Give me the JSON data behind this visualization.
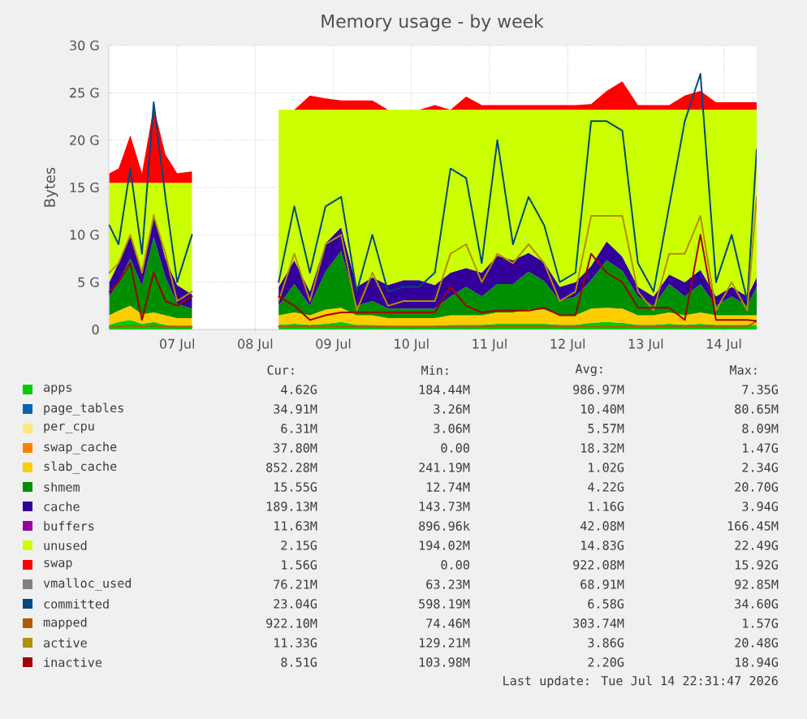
{
  "chart_data": {
    "type": "area",
    "title": "Memory usage - by week",
    "ylabel": "Bytes",
    "stacked": true,
    "grid": true,
    "legend": "bottom",
    "x": [
      "2026-07-06T03:10",
      "2026-07-06T06:00",
      "2026-07-06T09:36",
      "2026-07-06T13:12",
      "2026-07-06T16:48",
      "2026-07-06T20:24",
      "2026-07-07T00:00",
      "2026-07-07T04:34",
      "2026-07-07T16:48",
      "2026-07-08T07:12",
      "2026-07-08T12:00",
      "2026-07-08T16:48",
      "2026-07-08T21:36",
      "2026-07-09T02:24",
      "2026-07-09T07:12",
      "2026-07-09T12:00",
      "2026-07-09T16:48",
      "2026-07-09T21:36",
      "2026-07-10T02:24",
      "2026-07-10T07:12",
      "2026-07-10T12:00",
      "2026-07-10T16:48",
      "2026-07-10T21:36",
      "2026-07-11T02:24",
      "2026-07-11T07:12",
      "2026-07-11T12:00",
      "2026-07-11T16:48",
      "2026-07-11T21:36",
      "2026-07-12T02:24",
      "2026-07-12T07:12",
      "2026-07-12T12:00",
      "2026-07-12T16:48",
      "2026-07-12T21:36",
      "2026-07-13T02:24",
      "2026-07-13T07:12",
      "2026-07-13T12:00",
      "2026-07-13T16:48",
      "2026-07-13T21:36",
      "2026-07-14T02:24",
      "2026-07-14T07:12",
      "2026-07-14T10:05"
    ],
    "xlim": [
      "2026-07-06T03:00",
      "2026-07-14T10:05"
    ],
    "xticks": [
      {
        "value": "2026-07-07",
        "label": "07 Jul"
      },
      {
        "value": "2026-07-08",
        "label": "08 Jul"
      },
      {
        "value": "2026-07-09",
        "label": "09 Jul"
      },
      {
        "value": "2026-07-10",
        "label": "10 Jul"
      },
      {
        "value": "2026-07-11",
        "label": "11 Jul"
      },
      {
        "value": "2026-07-12",
        "label": "12 Jul"
      },
      {
        "value": "2026-07-13",
        "label": "13 Jul"
      },
      {
        "value": "2026-07-14",
        "label": "14 Jul"
      }
    ],
    "ylim": [
      0,
      30
    ],
    "yticks": [
      0,
      {
        "value": 5,
        "label": "5 G"
      },
      {
        "value": 10,
        "label": "10 G"
      },
      {
        "value": 15,
        "label": "15 G"
      },
      {
        "value": 20,
        "label": "20 G"
      },
      {
        "value": 25,
        "label": "25 G"
      },
      {
        "value": 30,
        "label": "30 G"
      }
    ],
    "series": [
      {
        "name": "apps",
        "color": "#00cc00",
        "values": [
          0.5,
          0.8,
          1.0,
          0.6,
          0.8,
          0.5,
          0.4,
          0.4,
          null,
          0.5,
          0.6,
          0.5,
          0.6,
          0.8,
          0.5,
          0.5,
          0.4,
          0.4,
          0.4,
          0.4,
          0.5,
          0.5,
          0.5,
          0.6,
          0.6,
          0.6,
          0.6,
          0.5,
          0.5,
          0.7,
          0.8,
          0.7,
          0.5,
          0.5,
          0.6,
          0.5,
          0.6,
          0.5,
          0.5,
          0.5,
          0.5
        ]
      },
      {
        "name": "page_tables",
        "color": "#0066b3",
        "values": [
          null,
          null,
          null,
          null,
          null,
          null,
          null,
          null,
          null,
          null,
          null,
          null,
          null,
          null,
          null,
          null,
          null,
          null,
          null,
          null,
          null,
          null,
          null,
          null,
          null,
          null,
          null,
          null,
          null,
          null,
          null,
          null,
          null,
          null,
          null,
          null,
          null,
          null,
          null,
          null,
          null
        ]
      },
      {
        "name": "per_cpu",
        "color": "#ffe680",
        "values": [
          null,
          null,
          null,
          null,
          null,
          null,
          null,
          null,
          null,
          null,
          null,
          null,
          null,
          null,
          null,
          null,
          null,
          null,
          null,
          null,
          null,
          null,
          null,
          null,
          null,
          null,
          null,
          null,
          null,
          null,
          null,
          null,
          null,
          null,
          null,
          null,
          null,
          null,
          null,
          null,
          null
        ]
      },
      {
        "name": "swap_cache",
        "color": "#ff8000",
        "values": [
          null,
          null,
          null,
          null,
          null,
          null,
          null,
          null,
          null,
          null,
          null,
          null,
          null,
          null,
          null,
          null,
          null,
          null,
          null,
          null,
          null,
          null,
          null,
          null,
          null,
          null,
          null,
          null,
          null,
          null,
          null,
          null,
          null,
          null,
          null,
          null,
          null,
          null,
          null,
          null,
          null
        ]
      },
      {
        "name": "slab_cache",
        "color": "#ffcc00",
        "values": [
          1.0,
          1.2,
          1.5,
          1.0,
          1.0,
          1.0,
          0.8,
          0.8,
          null,
          1.0,
          1.2,
          1.0,
          1.5,
          1.5,
          1.0,
          1.0,
          0.8,
          0.8,
          0.8,
          0.8,
          1.0,
          1.0,
          1.0,
          1.2,
          1.2,
          1.5,
          1.5,
          1.0,
          1.0,
          1.5,
          1.5,
          1.5,
          1.0,
          1.0,
          1.2,
          1.0,
          1.2,
          1.0,
          1.0,
          1.0,
          1.0
        ]
      },
      {
        "name": "shmem",
        "color": "#008f00",
        "values": [
          2.0,
          3.0,
          5.0,
          3.0,
          8.0,
          4.0,
          1.5,
          1.0,
          null,
          1.0,
          3.0,
          1.0,
          4.0,
          6.0,
          1.0,
          1.5,
          1.0,
          1.0,
          1.0,
          1.0,
          2.0,
          3.0,
          2.0,
          3.0,
          3.0,
          4.0,
          3.0,
          1.5,
          2.0,
          3.0,
          5.0,
          4.0,
          2.0,
          1.0,
          3.0,
          2.0,
          3.0,
          1.0,
          2.0,
          1.0,
          3.0
        ]
      },
      {
        "name": "cache",
        "color": "#330099",
        "values": [
          1.5,
          2.0,
          2.5,
          1.5,
          2.5,
          2.0,
          2.0,
          1.5,
          null,
          2.0,
          2.5,
          1.5,
          3.0,
          2.5,
          2.0,
          2.5,
          2.5,
          3.0,
          3.0,
          2.5,
          2.5,
          2.0,
          2.5,
          3.0,
          2.5,
          2.0,
          2.0,
          1.5,
          1.5,
          1.5,
          2.0,
          1.5,
          1.0,
          1.0,
          1.0,
          1.5,
          1.5,
          1.0,
          1.0,
          1.0,
          1.0
        ]
      },
      {
        "name": "buffers",
        "color": "#990099",
        "values": [
          null,
          null,
          null,
          null,
          null,
          null,
          null,
          null,
          null,
          null,
          null,
          null,
          null,
          null,
          null,
          null,
          null,
          null,
          null,
          null,
          null,
          null,
          null,
          null,
          null,
          null,
          null,
          null,
          null,
          null,
          null,
          null,
          null,
          null,
          null,
          null,
          null,
          null,
          null,
          null,
          null
        ]
      },
      {
        "name": "unused",
        "color": "#ccff00",
        "values": [
          10.5,
          8.5,
          5.5,
          9.4,
          3.2,
          8.0,
          10.8,
          11.8,
          null,
          18.7,
          15.9,
          19.2,
          14.1,
          12.4,
          18.7,
          17.7,
          18.5,
          18.0,
          18.0,
          18.5,
          17.2,
          16.7,
          17.2,
          15.4,
          15.9,
          15.1,
          16.1,
          18.7,
          18.2,
          16.5,
          13.9,
          15.5,
          18.7,
          19.7,
          17.4,
          18.2,
          16.9,
          19.7,
          18.7,
          19.7,
          17.7
        ]
      },
      {
        "name": "swap",
        "color": "#ff0000",
        "values": [
          1.0,
          1.5,
          5.0,
          1.0,
          8.0,
          3.0,
          1.0,
          1.2,
          null,
          0,
          0,
          1.5,
          1.2,
          1.0,
          1.0,
          1.0,
          0,
          0,
          0,
          0.5,
          0,
          1.4,
          0.5,
          0.5,
          0.5,
          0.5,
          0.5,
          0.5,
          0.5,
          0.6,
          2.0,
          3.0,
          0.5,
          0.5,
          0.5,
          1.5,
          2.0,
          0.8,
          0.8,
          0.8,
          0.8
        ]
      },
      {
        "name": "vmalloc_used",
        "type": "line",
        "color": "#808080",
        "values": [
          null,
          null,
          null,
          null,
          null,
          null,
          null,
          null,
          null,
          null,
          null,
          null,
          null,
          null,
          null,
          null,
          null,
          null,
          null,
          null,
          null,
          null,
          null,
          null,
          null,
          null,
          null,
          null,
          null,
          null,
          null,
          null,
          null,
          null,
          null,
          null,
          null,
          null,
          null,
          null,
          null
        ]
      },
      {
        "name": "committed",
        "type": "line",
        "color": "#00487d",
        "values": [
          11,
          9,
          17,
          8,
          24,
          14,
          5,
          10,
          null,
          5,
          13,
          6,
          13,
          14,
          4,
          10,
          4,
          4.5,
          4.5,
          6,
          17,
          16,
          7,
          20,
          9,
          14,
          11,
          5,
          6,
          22,
          22,
          21,
          7,
          4,
          13,
          22,
          27,
          5,
          10,
          3,
          19
        ]
      },
      {
        "name": "mapped",
        "type": "line",
        "color": "#b35a00",
        "values": [
          0.3,
          0.3,
          0.4,
          0.3,
          0.4,
          0.3,
          0.3,
          0.3,
          null,
          0.3,
          0.3,
          0.3,
          0.3,
          0.3,
          0.3,
          0.3,
          0.3,
          0.3,
          0.3,
          0.3,
          0.3,
          0.3,
          0.3,
          0.3,
          0.3,
          0.3,
          0.3,
          0.3,
          0.3,
          0.3,
          0.3,
          0.3,
          0.3,
          0.3,
          0.3,
          0.3,
          0.3,
          0.3,
          0.3,
          0.3,
          0.9
        ]
      },
      {
        "name": "active",
        "type": "line",
        "color": "#b38f00",
        "values": [
          6,
          7,
          10,
          6,
          12,
          8,
          3,
          4,
          null,
          3,
          8,
          3,
          9,
          10,
          2,
          6,
          2.5,
          3,
          3,
          3,
          8,
          9,
          5,
          8,
          7,
          9,
          7,
          3,
          4,
          12,
          12,
          12,
          4,
          2,
          8,
          8,
          12,
          2,
          5,
          2,
          14
        ]
      },
      {
        "name": "inactive",
        "type": "line",
        "color": "#a00000",
        "values": [
          4,
          5,
          7,
          1,
          6,
          3,
          2.5,
          3.5,
          null,
          3.5,
          2.5,
          1,
          1.5,
          1.8,
          1.8,
          1.8,
          1.8,
          1.8,
          1.8,
          1.8,
          4.5,
          2.5,
          1.8,
          2.0,
          2.0,
          2.0,
          2.3,
          1.5,
          1.5,
          8,
          6,
          5,
          2.3,
          2.3,
          2.3,
          1,
          10,
          1,
          1,
          1,
          0.9
        ]
      }
    ],
    "annotations": [
      "Cur:",
      "Min:",
      "Avg:",
      "Max:",
      "4.62G",
      "184.44M",
      "986.97M",
      "7.35G",
      "34.91M",
      "3.26M",
      "10.40M",
      "80.65M",
      "6.31M",
      "3.06M",
      "5.57M",
      "8.09M",
      "37.80M",
      "0.00",
      "18.32M",
      "1.47G",
      "852.28M",
      "241.19M",
      "1.02G",
      "2.34G",
      "15.55G",
      "12.74M",
      "4.22G",
      "20.70G",
      "189.13M",
      "143.73M",
      "1.16G",
      "3.94G",
      "11.63M",
      "896.96k",
      "42.08M",
      "166.45M",
      "2.15G",
      "194.02M",
      "14.83G",
      "22.49G",
      "1.56G",
      "0.00",
      "922.08M",
      "15.92G",
      "76.21M",
      "63.23M",
      "68.91M",
      "92.85M",
      "23.04G",
      "598.19M",
      "6.58G",
      "34.60G",
      "922.10M",
      "74.46M",
      "303.74M",
      "1.57G",
      "11.33G",
      "129.21M",
      "3.86G",
      "20.48G",
      "8.51G",
      "103.98M",
      "2.20G",
      "18.94G",
      "Last update: Tue Jul 14 22:31:47 2026"
    ]
  }
}
